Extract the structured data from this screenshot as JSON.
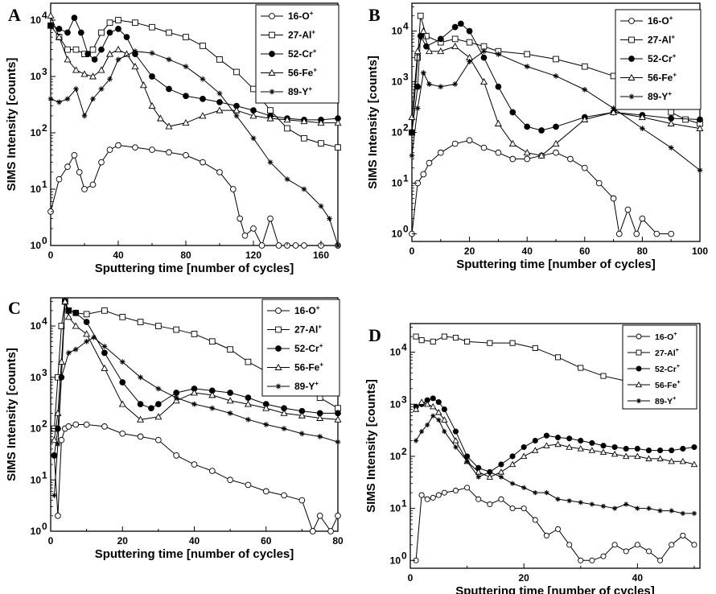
{
  "figure": {
    "colors": {
      "ink": "#000000",
      "background": "#ffffff"
    },
    "legend_entries": [
      "16-O",
      "27-Al",
      "52-Cr",
      "56-Fe",
      "89-Y"
    ],
    "legend_sup": "+",
    "marker_styles": [
      "open-circle",
      "open-square",
      "filled-circle",
      "open-triangle",
      "star"
    ]
  },
  "chart_data": [
    {
      "type": "line",
      "panel": "A",
      "xlabel": "Sputtering time [number of cycles]",
      "ylabel": "SIMS Intensity [counts]",
      "xlim": [
        0,
        170
      ],
      "ylim_log10": [
        0,
        4.3
      ],
      "yscale": "log",
      "xticks": [
        0,
        40,
        80,
        120,
        160
      ],
      "yticks_labels": [
        "10",
        "10",
        "10",
        "10",
        "10"
      ],
      "ytick_exponents": [
        "0",
        "1",
        "2",
        "3",
        "4"
      ],
      "legend_placement": "top-right",
      "series": [
        {
          "name": "16-O",
          "x": [
            0,
            5,
            10,
            14,
            17,
            20,
            25,
            30,
            35,
            40,
            50,
            60,
            70,
            80,
            90,
            100,
            108,
            112,
            115,
            120,
            125,
            130,
            135,
            140,
            145,
            150,
            160,
            170
          ],
          "y": [
            4,
            15,
            25,
            40,
            20,
            10,
            12,
            30,
            50,
            60,
            55,
            50,
            45,
            40,
            30,
            20,
            10,
            3,
            1.5,
            2,
            1,
            3,
            1,
            1,
            1,
            1,
            1,
            1
          ]
        },
        {
          "name": "27-Al",
          "x": [
            0,
            5,
            10,
            15,
            20,
            25,
            30,
            35,
            40,
            50,
            60,
            70,
            80,
            90,
            100,
            110,
            120,
            130,
            140,
            150,
            160,
            170
          ],
          "y": [
            8000,
            5000,
            3000,
            3000,
            2500,
            3000,
            6000,
            9000,
            10000,
            9000,
            7500,
            6000,
            5000,
            3500,
            2000,
            1200,
            600,
            250,
            120,
            80,
            65,
            55
          ]
        },
        {
          "name": "52-Cr",
          "x": [
            0,
            5,
            10,
            14,
            18,
            22,
            26,
            30,
            35,
            40,
            45,
            50,
            60,
            70,
            80,
            90,
            100,
            110,
            120,
            130,
            140,
            150,
            160,
            170
          ],
          "y": [
            8000,
            7000,
            6000,
            11000,
            6000,
            2500,
            2000,
            3000,
            6000,
            7000,
            5000,
            2500,
            1000,
            600,
            450,
            400,
            350,
            300,
            250,
            200,
            180,
            170,
            170,
            180
          ]
        },
        {
          "name": "56-Fe",
          "x": [
            0,
            5,
            10,
            15,
            20,
            25,
            30,
            35,
            40,
            45,
            50,
            55,
            60,
            65,
            70,
            80,
            90,
            100,
            110,
            120,
            130,
            140,
            150,
            160,
            170
          ],
          "y": [
            12000,
            5000,
            2000,
            1300,
            1100,
            1000,
            1300,
            2500,
            3000,
            2500,
            1500,
            700,
            300,
            180,
            130,
            150,
            200,
            250,
            250,
            200,
            180,
            170,
            160,
            150,
            150
          ]
        },
        {
          "name": "89-Y",
          "x": [
            0,
            5,
            10,
            15,
            20,
            25,
            30,
            35,
            40,
            50,
            60,
            70,
            80,
            90,
            100,
            110,
            120,
            130,
            140,
            150,
            160,
            165,
            170
          ],
          "y": [
            400,
            350,
            400,
            600,
            200,
            400,
            600,
            900,
            2000,
            2800,
            2600,
            2000,
            1500,
            900,
            500,
            200,
            80,
            30,
            15,
            10,
            5,
            3,
            1
          ]
        }
      ]
    },
    {
      "type": "line",
      "panel": "B",
      "xlabel": "Sputtering time [number of cycles]",
      "ylabel": "SIMS Intensity [counts]",
      "xlim": [
        0,
        100
      ],
      "ylim_log10": [
        -0.15,
        4.55
      ],
      "yscale": "log",
      "xticks": [
        0,
        20,
        40,
        60,
        80,
        100
      ],
      "yticks_labels": [
        "10",
        "10",
        "10",
        "10",
        "10"
      ],
      "ytick_exponents": [
        "0",
        "1",
        "2",
        "3",
        "4"
      ],
      "legend_placement": "top-right",
      "series": [
        {
          "name": "16-O",
          "x": [
            0,
            2,
            4,
            6,
            10,
            15,
            20,
            25,
            30,
            35,
            40,
            45,
            50,
            55,
            60,
            65,
            70,
            72,
            75,
            78,
            80,
            85,
            90
          ],
          "y": [
            1,
            10,
            15,
            25,
            40,
            60,
            70,
            50,
            40,
            30,
            30,
            35,
            40,
            30,
            20,
            10,
            5,
            1,
            3,
            1,
            2,
            1,
            1
          ]
        },
        {
          "name": "27-Al",
          "x": [
            0,
            2,
            3,
            5,
            10,
            15,
            20,
            25,
            30,
            40,
            50,
            60,
            70,
            80,
            85,
            90,
            95,
            100
          ],
          "y": [
            100,
            3000,
            20000,
            8000,
            6000,
            7000,
            6000,
            5000,
            4000,
            3500,
            2800,
            2000,
            1300,
            800,
            500,
            250,
            180,
            150
          ]
        },
        {
          "name": "52-Cr",
          "x": [
            0,
            2,
            3,
            5,
            10,
            15,
            17,
            20,
            25,
            30,
            35,
            40,
            45,
            50,
            60,
            70,
            80,
            90,
            100
          ],
          "y": [
            100,
            800,
            8000,
            5000,
            7000,
            12000,
            14000,
            10000,
            3000,
            800,
            250,
            130,
            110,
            130,
            200,
            250,
            220,
            190,
            180
          ]
        },
        {
          "name": "56-Fe",
          "x": [
            0,
            2,
            4,
            6,
            10,
            15,
            20,
            25,
            30,
            35,
            40,
            45,
            50,
            60,
            70,
            80,
            90,
            100
          ],
          "y": [
            200,
            4000,
            10000,
            4000,
            4000,
            5000,
            3000,
            1000,
            150,
            60,
            40,
            35,
            60,
            180,
            250,
            200,
            150,
            120
          ]
        },
        {
          "name": "89-Y",
          "x": [
            0,
            2,
            4,
            6,
            10,
            15,
            20,
            25,
            30,
            40,
            50,
            60,
            70,
            80,
            90,
            100
          ],
          "y": [
            35,
            300,
            1500,
            900,
            800,
            900,
            2500,
            4000,
            3500,
            2000,
            1300,
            700,
            300,
            120,
            50,
            18
          ]
        }
      ]
    },
    {
      "type": "line",
      "panel": "C",
      "xlabel": "Sputtering time [number of cycles]",
      "ylabel": "SIMS Intensity [counts]",
      "xlim": [
        0,
        80
      ],
      "ylim_log10": [
        0,
        4.55
      ],
      "yscale": "log",
      "xticks": [
        0,
        20,
        40,
        60,
        80
      ],
      "yticks_labels": [
        "10",
        "10",
        "10",
        "10",
        "10"
      ],
      "ytick_exponents": [
        "0",
        "1",
        "2",
        "3",
        "4"
      ],
      "legend_placement": "top-right",
      "series": [
        {
          "name": "16-O",
          "x": [
            1,
            2,
            3,
            4,
            5,
            7,
            10,
            15,
            20,
            25,
            30,
            35,
            40,
            45,
            50,
            55,
            60,
            65,
            70,
            73,
            75,
            78,
            80
          ],
          "y": [
            30,
            2,
            60,
            100,
            110,
            120,
            120,
            110,
            80,
            70,
            60,
            30,
            20,
            15,
            10,
            8,
            6,
            5,
            4,
            1,
            2,
            1,
            2
          ]
        },
        {
          "name": "27-Al",
          "x": [
            1,
            2,
            3,
            4,
            5,
            7,
            10,
            15,
            20,
            25,
            30,
            35,
            40,
            45,
            50,
            55,
            60,
            65,
            70,
            75,
            80
          ],
          "y": [
            100,
            1000,
            10000,
            30000,
            20000,
            18000,
            17000,
            20000,
            15000,
            12000,
            10000,
            8500,
            7000,
            5000,
            3500,
            2000,
            1300,
            900,
            600,
            400,
            250
          ]
        },
        {
          "name": "52-Cr",
          "x": [
            1,
            2,
            3,
            4,
            5,
            7,
            10,
            15,
            20,
            25,
            28,
            30,
            35,
            40,
            45,
            50,
            55,
            60,
            65,
            70,
            75,
            80
          ],
          "y": [
            30,
            100,
            1000,
            30000,
            20000,
            18000,
            12000,
            3000,
            800,
            300,
            250,
            300,
            500,
            600,
            550,
            500,
            400,
            300,
            250,
            220,
            200,
            200
          ]
        },
        {
          "name": "56-Fe",
          "x": [
            1,
            2,
            3,
            4,
            5,
            7,
            10,
            15,
            20,
            25,
            30,
            35,
            40,
            45,
            50,
            55,
            60,
            65,
            70,
            75,
            80
          ],
          "y": [
            60,
            200,
            2000,
            30000,
            15000,
            10000,
            7000,
            1500,
            300,
            150,
            170,
            350,
            500,
            450,
            350,
            300,
            250,
            200,
            180,
            160,
            150
          ]
        },
        {
          "name": "89-Y",
          "x": [
            1,
            2,
            3,
            5,
            7,
            10,
            12,
            15,
            20,
            25,
            30,
            35,
            40,
            45,
            50,
            55,
            60,
            65,
            70,
            75,
            80
          ],
          "y": [
            5,
            50,
            1000,
            3000,
            3500,
            5000,
            6000,
            4000,
            2000,
            1000,
            600,
            400,
            300,
            250,
            200,
            150,
            120,
            100,
            80,
            70,
            55
          ]
        }
      ]
    },
    {
      "type": "line",
      "panel": "D",
      "xlabel": "Sputtering time [number of cycles]",
      "ylabel": "SIMS Intensity [counts]",
      "xlim": [
        0,
        51
      ],
      "ylim_log10": [
        -0.15,
        4.55
      ],
      "yscale": "log",
      "xticks": [
        0,
        20,
        40
      ],
      "yticks_labels": [
        "10",
        "10",
        "10",
        "10",
        "10"
      ],
      "ytick_exponents": [
        "0",
        "1",
        "2",
        "3",
        "4"
      ],
      "legend_placement": "top-right",
      "series": [
        {
          "name": "16-O",
          "x": [
            1,
            2,
            3,
            4,
            5,
            6,
            8,
            10,
            12,
            14,
            16,
            18,
            20,
            22,
            24,
            26,
            28,
            30,
            32,
            34,
            36,
            38,
            40,
            42,
            44,
            46,
            48,
            50
          ],
          "y": [
            1,
            18,
            15,
            16,
            18,
            20,
            22,
            25,
            15,
            12,
            15,
            10,
            10,
            6,
            3,
            4,
            2,
            1,
            1,
            1.2,
            2,
            1.5,
            2,
            1.5,
            1,
            2,
            3,
            2
          ]
        },
        {
          "name": "27-Al",
          "x": [
            1,
            2,
            4,
            6,
            8,
            10,
            14,
            18,
            22,
            26,
            30,
            34,
            38,
            42,
            46,
            50
          ],
          "y": [
            20000,
            17000,
            16000,
            20000,
            19000,
            16000,
            15000,
            15000,
            12000,
            8000,
            5000,
            3500,
            2800,
            2200,
            1800,
            1500
          ]
        },
        {
          "name": "52-Cr",
          "x": [
            1,
            2,
            3,
            4,
            5,
            6,
            8,
            10,
            12,
            14,
            16,
            18,
            20,
            22,
            24,
            26,
            28,
            30,
            32,
            34,
            36,
            38,
            40,
            42,
            44,
            46,
            48,
            50
          ],
          "y": [
            900,
            1000,
            1200,
            1300,
            1100,
            800,
            300,
            100,
            60,
            50,
            70,
            100,
            150,
            200,
            250,
            230,
            220,
            200,
            180,
            160,
            150,
            140,
            140,
            130,
            130,
            130,
            140,
            150
          ]
        },
        {
          "name": "56-Fe",
          "x": [
            1,
            2,
            3,
            4,
            5,
            6,
            8,
            10,
            12,
            14,
            16,
            18,
            20,
            22,
            24,
            26,
            28,
            30,
            32,
            34,
            36,
            38,
            40,
            42,
            44,
            46,
            48,
            50
          ],
          "y": [
            800,
            1100,
            1000,
            900,
            700,
            500,
            200,
            80,
            50,
            40,
            50,
            70,
            100,
            130,
            160,
            170,
            150,
            140,
            130,
            120,
            110,
            100,
            100,
            90,
            90,
            80,
            80,
            70
          ]
        },
        {
          "name": "89-Y",
          "x": [
            1,
            2,
            3,
            4,
            5,
            6,
            8,
            10,
            12,
            14,
            16,
            18,
            20,
            22,
            24,
            26,
            28,
            30,
            32,
            34,
            36,
            38,
            40,
            42,
            44,
            46,
            48,
            50
          ],
          "y": [
            200,
            300,
            400,
            600,
            500,
            300,
            150,
            80,
            40,
            50,
            40,
            30,
            25,
            20,
            20,
            15,
            14,
            13,
            12,
            11,
            10,
            12,
            10,
            10,
            9,
            9,
            8,
            8
          ]
        }
      ]
    }
  ]
}
